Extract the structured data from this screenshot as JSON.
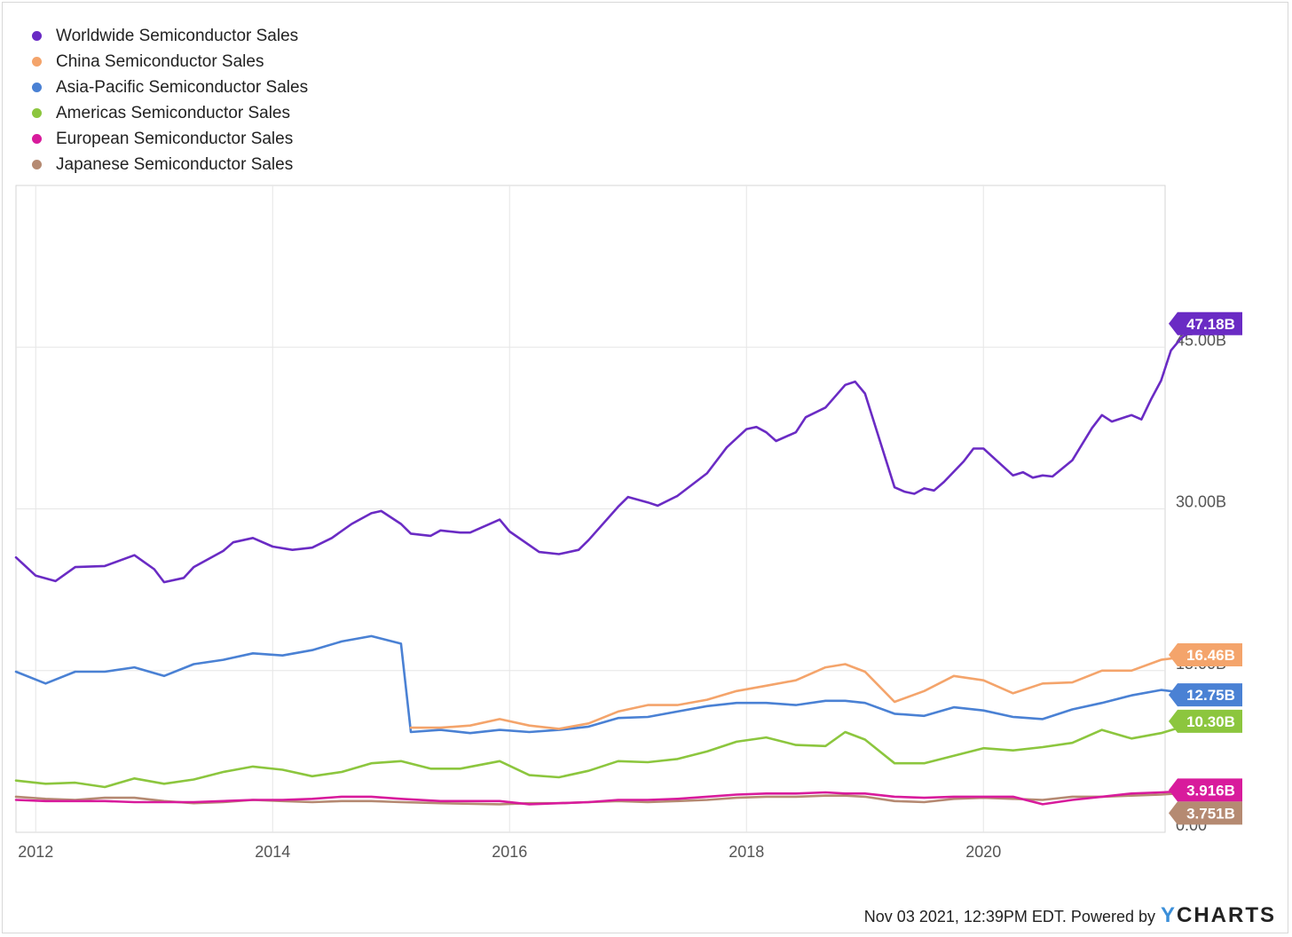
{
  "chart_data": {
    "type": "line",
    "x_axis": {
      "ticks": [
        "2012",
        "2014",
        "2016",
        "2018",
        "2020"
      ],
      "range": [
        "2011-11",
        "2021-09"
      ]
    },
    "y_axis": {
      "ticks": [
        {
          "value": 0,
          "label": "0.00"
        },
        {
          "value": 15,
          "label": "15.00B"
        },
        {
          "value": 30,
          "label": "30.00B"
        },
        {
          "value": 45,
          "label": "45.00B"
        }
      ],
      "range": [
        0,
        60
      ],
      "position": "right",
      "unit": "billions USD"
    },
    "grid": true,
    "legend_position": "top-left",
    "series": [
      {
        "name": "Worldwide Semiconductor Sales",
        "color": "#6a2bc4",
        "last_label": "47.18B",
        "points": [
          [
            "2011-11",
            25.5
          ],
          [
            "2012-01",
            23.8
          ],
          [
            "2012-03",
            23.3
          ],
          [
            "2012-05",
            24.6
          ],
          [
            "2012-08",
            24.7
          ],
          [
            "2012-11",
            25.7
          ],
          [
            "2013-01",
            24.4
          ],
          [
            "2013-02",
            23.2
          ],
          [
            "2013-04",
            23.6
          ],
          [
            "2013-05",
            24.6
          ],
          [
            "2013-08",
            26.1
          ],
          [
            "2013-09",
            26.9
          ],
          [
            "2013-11",
            27.3
          ],
          [
            "2014-01",
            26.5
          ],
          [
            "2014-03",
            26.2
          ],
          [
            "2014-05",
            26.4
          ],
          [
            "2014-07",
            27.3
          ],
          [
            "2014-09",
            28.6
          ],
          [
            "2014-11",
            29.6
          ],
          [
            "2014-12",
            29.8
          ],
          [
            "2015-02",
            28.6
          ],
          [
            "2015-03",
            27.7
          ],
          [
            "2015-05",
            27.5
          ],
          [
            "2015-06",
            28.0
          ],
          [
            "2015-08",
            27.8
          ],
          [
            "2015-09",
            27.8
          ],
          [
            "2015-12",
            29.0
          ],
          [
            "2016-01",
            27.9
          ],
          [
            "2016-04",
            26.0
          ],
          [
            "2016-06",
            25.8
          ],
          [
            "2016-08",
            26.2
          ],
          [
            "2016-09",
            27.1
          ],
          [
            "2016-12",
            30.2
          ],
          [
            "2017-01",
            31.1
          ],
          [
            "2017-03",
            30.6
          ],
          [
            "2017-04",
            30.3
          ],
          [
            "2017-06",
            31.2
          ],
          [
            "2017-09",
            33.3
          ],
          [
            "2017-11",
            35.7
          ],
          [
            "2018-01",
            37.4
          ],
          [
            "2018-02",
            37.6
          ],
          [
            "2018-03",
            37.1
          ],
          [
            "2018-04",
            36.3
          ],
          [
            "2018-06",
            37.1
          ],
          [
            "2018-07",
            38.5
          ],
          [
            "2018-09",
            39.4
          ],
          [
            "2018-11",
            41.5
          ],
          [
            "2018-12",
            41.8
          ],
          [
            "2019-01",
            40.7
          ],
          [
            "2019-04",
            32.0
          ],
          [
            "2019-05",
            31.6
          ],
          [
            "2019-06",
            31.4
          ],
          [
            "2019-07",
            31.9
          ],
          [
            "2019-08",
            31.7
          ],
          [
            "2019-09",
            32.5
          ],
          [
            "2019-11",
            34.4
          ],
          [
            "2019-12",
            35.6
          ],
          [
            "2020-01",
            35.6
          ],
          [
            "2020-04",
            33.1
          ],
          [
            "2020-05",
            33.4
          ],
          [
            "2020-06",
            32.9
          ],
          [
            "2020-07",
            33.1
          ],
          [
            "2020-08",
            33.0
          ],
          [
            "2020-10",
            34.5
          ],
          [
            "2020-12",
            37.5
          ],
          [
            "2021-01",
            38.7
          ],
          [
            "2021-02",
            38.1
          ],
          [
            "2021-04",
            38.7
          ],
          [
            "2021-05",
            38.3
          ],
          [
            "2021-06",
            40.2
          ],
          [
            "2021-07",
            41.9
          ],
          [
            "2021-08",
            44.7
          ],
          [
            "2021-09",
            45.8
          ],
          [
            "2021-10",
            46.5
          ],
          [
            "2021-11",
            47.18
          ]
        ]
      },
      {
        "name": "China Semiconductor Sales",
        "color": "#f4a46b",
        "last_label": "16.46B",
        "points": [
          [
            "2015-03",
            9.7
          ],
          [
            "2015-06",
            9.7
          ],
          [
            "2015-09",
            9.9
          ],
          [
            "2015-12",
            10.5
          ],
          [
            "2016-03",
            9.9
          ],
          [
            "2016-06",
            9.6
          ],
          [
            "2016-09",
            10.1
          ],
          [
            "2016-12",
            11.2
          ],
          [
            "2017-03",
            11.8
          ],
          [
            "2017-06",
            11.8
          ],
          [
            "2017-09",
            12.3
          ],
          [
            "2017-12",
            13.1
          ],
          [
            "2018-03",
            13.6
          ],
          [
            "2018-06",
            14.1
          ],
          [
            "2018-09",
            15.3
          ],
          [
            "2018-11",
            15.6
          ],
          [
            "2019-01",
            14.9
          ],
          [
            "2019-04",
            12.1
          ],
          [
            "2019-07",
            13.1
          ],
          [
            "2019-10",
            14.5
          ],
          [
            "2020-01",
            14.1
          ],
          [
            "2020-04",
            12.9
          ],
          [
            "2020-07",
            13.8
          ],
          [
            "2020-10",
            13.9
          ],
          [
            "2021-01",
            15.0
          ],
          [
            "2021-04",
            15.0
          ],
          [
            "2021-07",
            16.0
          ],
          [
            "2021-11",
            16.46
          ]
        ]
      },
      {
        "name": "Asia-Pacific Semiconductor Sales",
        "color": "#4a81d4",
        "last_label": "12.75B",
        "points": [
          [
            "2011-11",
            14.9
          ],
          [
            "2012-02",
            13.8
          ],
          [
            "2012-05",
            14.9
          ],
          [
            "2012-08",
            14.9
          ],
          [
            "2012-11",
            15.3
          ],
          [
            "2013-02",
            14.5
          ],
          [
            "2013-05",
            15.6
          ],
          [
            "2013-08",
            16.0
          ],
          [
            "2013-11",
            16.6
          ],
          [
            "2014-02",
            16.4
          ],
          [
            "2014-05",
            16.9
          ],
          [
            "2014-08",
            17.7
          ],
          [
            "2014-11",
            18.2
          ],
          [
            "2015-02",
            17.5
          ],
          [
            "2015-03",
            9.3
          ],
          [
            "2015-06",
            9.5
          ],
          [
            "2015-09",
            9.2
          ],
          [
            "2015-12",
            9.5
          ],
          [
            "2016-03",
            9.3
          ],
          [
            "2016-06",
            9.5
          ],
          [
            "2016-09",
            9.8
          ],
          [
            "2016-12",
            10.6
          ],
          [
            "2017-03",
            10.7
          ],
          [
            "2017-06",
            11.2
          ],
          [
            "2017-09",
            11.7
          ],
          [
            "2017-12",
            12.0
          ],
          [
            "2018-03",
            12.0
          ],
          [
            "2018-06",
            11.8
          ],
          [
            "2018-09",
            12.2
          ],
          [
            "2018-11",
            12.2
          ],
          [
            "2019-01",
            12.0
          ],
          [
            "2019-04",
            11.0
          ],
          [
            "2019-07",
            10.8
          ],
          [
            "2019-10",
            11.6
          ],
          [
            "2020-01",
            11.3
          ],
          [
            "2020-04",
            10.7
          ],
          [
            "2020-07",
            10.5
          ],
          [
            "2020-10",
            11.4
          ],
          [
            "2021-01",
            12.0
          ],
          [
            "2021-04",
            12.7
          ],
          [
            "2021-07",
            13.2
          ],
          [
            "2021-11",
            12.75
          ]
        ]
      },
      {
        "name": "Americas Semiconductor Sales",
        "color": "#8cc63e",
        "last_label": "10.30B",
        "points": [
          [
            "2011-11",
            4.8
          ],
          [
            "2012-02",
            4.5
          ],
          [
            "2012-05",
            4.6
          ],
          [
            "2012-08",
            4.2
          ],
          [
            "2012-11",
            5.0
          ],
          [
            "2013-02",
            4.5
          ],
          [
            "2013-05",
            4.9
          ],
          [
            "2013-08",
            5.6
          ],
          [
            "2013-11",
            6.1
          ],
          [
            "2014-02",
            5.8
          ],
          [
            "2014-05",
            5.2
          ],
          [
            "2014-08",
            5.6
          ],
          [
            "2014-11",
            6.4
          ],
          [
            "2015-02",
            6.6
          ],
          [
            "2015-05",
            5.9
          ],
          [
            "2015-08",
            5.9
          ],
          [
            "2015-12",
            6.6
          ],
          [
            "2016-03",
            5.3
          ],
          [
            "2016-06",
            5.1
          ],
          [
            "2016-09",
            5.7
          ],
          [
            "2016-12",
            6.6
          ],
          [
            "2017-03",
            6.5
          ],
          [
            "2017-06",
            6.8
          ],
          [
            "2017-09",
            7.5
          ],
          [
            "2017-12",
            8.4
          ],
          [
            "2018-03",
            8.8
          ],
          [
            "2018-06",
            8.1
          ],
          [
            "2018-09",
            8.0
          ],
          [
            "2018-11",
            9.3
          ],
          [
            "2019-01",
            8.6
          ],
          [
            "2019-04",
            6.4
          ],
          [
            "2019-07",
            6.4
          ],
          [
            "2019-10",
            7.1
          ],
          [
            "2020-01",
            7.8
          ],
          [
            "2020-04",
            7.6
          ],
          [
            "2020-07",
            7.9
          ],
          [
            "2020-10",
            8.3
          ],
          [
            "2021-01",
            9.5
          ],
          [
            "2021-04",
            8.7
          ],
          [
            "2021-07",
            9.2
          ],
          [
            "2021-11",
            10.3
          ]
        ]
      },
      {
        "name": "European Semiconductor Sales",
        "color": "#d81b9c",
        "last_label": "3.916B",
        "points": [
          [
            "2011-11",
            3.0
          ],
          [
            "2012-02",
            2.9
          ],
          [
            "2012-05",
            2.9
          ],
          [
            "2012-08",
            2.9
          ],
          [
            "2012-11",
            2.8
          ],
          [
            "2013-02",
            2.8
          ],
          [
            "2013-05",
            2.8
          ],
          [
            "2013-08",
            2.9
          ],
          [
            "2013-11",
            3.0
          ],
          [
            "2014-02",
            3.0
          ],
          [
            "2014-05",
            3.1
          ],
          [
            "2014-08",
            3.3
          ],
          [
            "2014-11",
            3.3
          ],
          [
            "2015-02",
            3.1
          ],
          [
            "2015-06",
            2.9
          ],
          [
            "2015-12",
            2.9
          ],
          [
            "2016-03",
            2.6
          ],
          [
            "2016-06",
            2.7
          ],
          [
            "2016-09",
            2.8
          ],
          [
            "2016-12",
            3.0
          ],
          [
            "2017-03",
            3.0
          ],
          [
            "2017-06",
            3.1
          ],
          [
            "2017-09",
            3.3
          ],
          [
            "2017-12",
            3.5
          ],
          [
            "2018-03",
            3.6
          ],
          [
            "2018-06",
            3.6
          ],
          [
            "2018-09",
            3.7
          ],
          [
            "2018-11",
            3.6
          ],
          [
            "2019-01",
            3.6
          ],
          [
            "2019-04",
            3.3
          ],
          [
            "2019-07",
            3.2
          ],
          [
            "2019-10",
            3.3
          ],
          [
            "2020-01",
            3.3
          ],
          [
            "2020-04",
            3.3
          ],
          [
            "2020-07",
            2.6
          ],
          [
            "2020-10",
            3.0
          ],
          [
            "2021-01",
            3.3
          ],
          [
            "2021-04",
            3.6
          ],
          [
            "2021-07",
            3.7
          ],
          [
            "2021-11",
            3.916
          ]
        ]
      },
      {
        "name": "Japanese Semiconductor Sales",
        "color": "#b58a72",
        "last_label": "3.751B",
        "points": [
          [
            "2011-11",
            3.3
          ],
          [
            "2012-02",
            3.1
          ],
          [
            "2012-05",
            3.0
          ],
          [
            "2012-08",
            3.2
          ],
          [
            "2012-11",
            3.2
          ],
          [
            "2013-02",
            2.9
          ],
          [
            "2013-05",
            2.7
          ],
          [
            "2013-08",
            2.8
          ],
          [
            "2013-11",
            3.0
          ],
          [
            "2014-02",
            2.9
          ],
          [
            "2014-05",
            2.8
          ],
          [
            "2014-08",
            2.9
          ],
          [
            "2014-11",
            2.9
          ],
          [
            "2015-02",
            2.8
          ],
          [
            "2015-06",
            2.7
          ],
          [
            "2015-12",
            2.6
          ],
          [
            "2016-03",
            2.7
          ],
          [
            "2016-06",
            2.7
          ],
          [
            "2016-09",
            2.8
          ],
          [
            "2016-12",
            2.9
          ],
          [
            "2017-03",
            2.8
          ],
          [
            "2017-06",
            2.9
          ],
          [
            "2017-09",
            3.0
          ],
          [
            "2017-12",
            3.2
          ],
          [
            "2018-03",
            3.3
          ],
          [
            "2018-06",
            3.3
          ],
          [
            "2018-09",
            3.4
          ],
          [
            "2018-11",
            3.4
          ],
          [
            "2019-01",
            3.3
          ],
          [
            "2019-04",
            2.9
          ],
          [
            "2019-07",
            2.8
          ],
          [
            "2019-10",
            3.1
          ],
          [
            "2020-01",
            3.2
          ],
          [
            "2020-04",
            3.1
          ],
          [
            "2020-07",
            3.0
          ],
          [
            "2020-10",
            3.3
          ],
          [
            "2021-01",
            3.3
          ],
          [
            "2021-04",
            3.4
          ],
          [
            "2021-07",
            3.5
          ],
          [
            "2021-11",
            3.751
          ]
        ]
      }
    ]
  },
  "footer": {
    "timestamp": "Nov 03 2021, 12:39PM EDT. Powered by",
    "brand_y": "Y",
    "brand_rest": "CHARTS"
  }
}
